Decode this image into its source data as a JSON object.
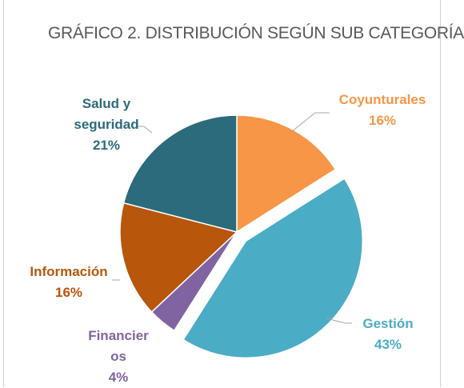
{
  "chart_data": {
    "type": "pie",
    "title": "GRÁFICO 2. DISTRIBUCIÓN SEGÚN SUB CATEGORÍA",
    "categories": [
      "Coyunturales",
      "Gestión",
      "Financieros",
      "Información",
      "Salud y seguridad"
    ],
    "values": [
      16,
      43,
      4,
      16,
      21
    ],
    "value_labels": [
      "16%",
      "43%",
      "4%",
      "16%",
      "21%"
    ],
    "colors": [
      "#f79646",
      "#4bacc6",
      "#8064a2",
      "#b8560b",
      "#2b6b7b"
    ],
    "exploded": [
      false,
      true,
      false,
      false,
      false
    ]
  }
}
